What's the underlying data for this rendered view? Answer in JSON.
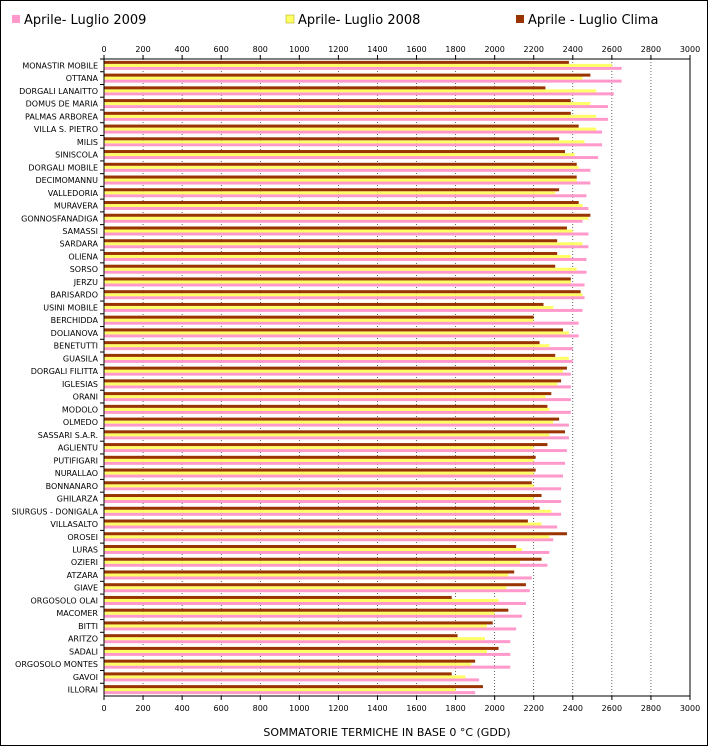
{
  "chart_data": {
    "type": "bar",
    "orientation": "horizontal",
    "xlabel": "SOMMATORIE TERMICHE IN BASE 0 °C (GDD)",
    "xlim": [
      0,
      3000
    ],
    "xticks": [
      0,
      200,
      400,
      600,
      800,
      1000,
      1200,
      1400,
      1600,
      1800,
      2000,
      2200,
      2400,
      2600,
      2800,
      3000
    ],
    "grid": "vertical dashed",
    "legend_position": "top",
    "categories": [
      "MONASTIR MOBILE",
      "OTTANA",
      "DORGALI LANAITTO",
      "DOMUS DE MARIA",
      "PALMAS ARBOREA",
      "VILLA S. PIETRO",
      "MILIS",
      "SINISCOLA",
      "DORGALI MOBILE",
      "DECIMOMANNU",
      "VALLEDORIA",
      "MURAVERA",
      "GONNOSFANADIGA",
      "SAMASSI",
      "SARDARA",
      "OLIENA",
      "SORSO",
      "JERZU",
      "BARISARDO",
      "USINI MOBILE",
      "BERCHIDDA",
      "DOLIANOVA",
      "BENETUTTI",
      "GUASILA",
      "DORGALI FILITTA",
      "IGLESIAS",
      "ORANI",
      "MODOLO",
      "OLMEDO",
      "SASSARI S.A.R.",
      "AGLIENTU",
      "PUTIFIGARI",
      "NURALLAO",
      "BONNANARO",
      "GHILARZA",
      "SIURGUS - DONIGALA",
      "VILLASALTO",
      "OROSEI",
      "LURAS",
      "OZIERI",
      "ATZARA",
      "GIAVE",
      "ORGOSOLO OLAI",
      "MACOMER",
      "BITTI",
      "ARITZO",
      "SADALI",
      "ORGOSOLO MONTES",
      "GAVOI",
      "ILLORAI"
    ],
    "series": [
      {
        "name": "Aprile- Luglio 2009",
        "color": "#ff99cc",
        "values": [
          2650,
          2650,
          2610,
          2580,
          2580,
          2550,
          2550,
          2530,
          2490,
          2490,
          2470,
          2480,
          2450,
          2480,
          2480,
          2470,
          2470,
          2460,
          2460,
          2450,
          2430,
          2430,
          2400,
          2400,
          2390,
          2390,
          2390,
          2390,
          2380,
          2380,
          2370,
          2360,
          2350,
          2340,
          2340,
          2340,
          2320,
          2300,
          2280,
          2270,
          2190,
          2180,
          2160,
          2140,
          2110,
          2080,
          2080,
          2080,
          1920,
          1900
        ]
      },
      {
        "name": "Aprile- Luglio 2008",
        "color": "#ffff66",
        "values": [
          2600,
          2450,
          2520,
          2490,
          2520,
          2520,
          2460,
          2410,
          2430,
          2420,
          2310,
          2450,
          2480,
          2400,
          2450,
          2390,
          2420,
          2390,
          2450,
          2300,
          2200,
          2380,
          2280,
          2380,
          2350,
          2320,
          2260,
          2280,
          2300,
          2280,
          2200,
          2200,
          2200,
          2200,
          2200,
          2290,
          2240,
          2280,
          2140,
          2130,
          2070,
          2060,
          2020,
          2000,
          1960,
          1950,
          1960,
          1880,
          1850,
          1800
        ]
      },
      {
        "name": "Aprile - Luglio Clima",
        "color": "#993300",
        "values": [
          2380,
          2490,
          2260,
          2390,
          2390,
          2430,
          2330,
          2360,
          2420,
          2420,
          2330,
          2430,
          2490,
          2370,
          2320,
          2320,
          2310,
          2390,
          2440,
          2250,
          2200,
          2350,
          2230,
          2310,
          2370,
          2340,
          2290,
          2270,
          2330,
          2360,
          2270,
          2210,
          2210,
          2190,
          2240,
          2230,
          2170,
          2370,
          2110,
          2240,
          2100,
          2160,
          1780,
          2070,
          1990,
          1810,
          2020,
          1900,
          1780,
          1940
        ]
      }
    ]
  }
}
